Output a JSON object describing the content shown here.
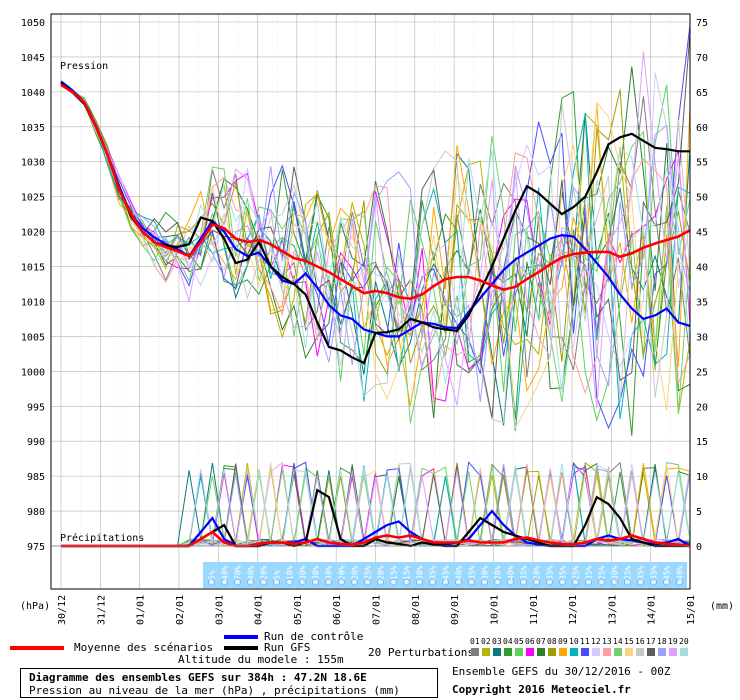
{
  "chart_data": {
    "type": "line",
    "labels": {
      "pressure": "Pression",
      "precip": "Précipitations",
      "y_unit_left": "(hPa)",
      "y_unit_right": "(mm)"
    },
    "x_dates": [
      "30/12",
      "31/12",
      "01/01",
      "02/01",
      "03/01",
      "04/01",
      "05/01",
      "06/01",
      "07/01",
      "08/01",
      "09/01",
      "10/01",
      "11/01",
      "12/01",
      "13/01",
      "14/01",
      "15/01"
    ],
    "pressure_axis": {
      "min": 975,
      "max": 1050,
      "step": 5
    },
    "precip_axis": {
      "min": 0,
      "max": 75,
      "step": 5
    },
    "snow_pct": [
      "5%",
      "40%",
      "70%",
      "40%",
      "20%",
      "5%",
      "10%",
      "30%",
      "30%",
      "30%",
      "20%",
      "20%",
      "25%",
      "20%",
      "15%",
      "15%",
      "30%",
      "35%",
      "45%",
      "40%",
      "35%",
      "30%",
      "20%",
      "40%",
      "35%",
      "20%",
      "35%",
      "35%",
      "25%",
      "35%",
      "25%",
      "30%",
      "25%",
      "35%",
      "35%",
      "45%",
      "40%"
    ],
    "series": [
      {
        "name": "Moyenne des scénarios",
        "color": "#ff0000",
        "pressure": [
          1041,
          1040,
          1038.5,
          1035,
          1031,
          1026,
          1022.5,
          1020,
          1018.5,
          1017.8,
          1017.2,
          1016.5,
          1018.5,
          1021,
          1020.5,
          1019,
          1018.5,
          1018.8,
          1018.2,
          1017.2,
          1016.2,
          1015.8,
          1015,
          1014.2,
          1013.2,
          1012.2,
          1011.2,
          1011.5,
          1011.2,
          1010.6,
          1010.4,
          1011,
          1012.2,
          1013.2,
          1013.5,
          1013.5,
          1013,
          1012.3,
          1011.7,
          1012.1,
          1013.2,
          1014.2,
          1015.3,
          1016.3,
          1016.8,
          1017,
          1017.1,
          1017.1,
          1016.4,
          1016.9,
          1017.7,
          1018.3,
          1018.8,
          1019.3,
          1020.2
        ],
        "precip": [
          0,
          0,
          0,
          0,
          0,
          0,
          0,
          0,
          0,
          0,
          0,
          0,
          1,
          2,
          0.5,
          0,
          0,
          0.3,
          0.5,
          0.5,
          0.3,
          0.5,
          1,
          0.5,
          0.3,
          0.2,
          0.5,
          1.2,
          1.5,
          1.2,
          1.5,
          1,
          0.5,
          0.5,
          0.5,
          0.8,
          0.5,
          0.5,
          0.5,
          1,
          1.2,
          0.8,
          0.5,
          0.3,
          0.2,
          0.5,
          1,
          0.8,
          1,
          1.5,
          1,
          0.5,
          0.3,
          0.2,
          0
        ]
      },
      {
        "name": "Run de contrôle",
        "color": "#0000ff",
        "pressure": [
          1041.5,
          1040.2,
          1038.5,
          1035.2,
          1031,
          1026.5,
          1022.5,
          1020.5,
          1019.2,
          1018.2,
          1017.5,
          1016.5,
          1019,
          1021.5,
          1020,
          1017.5,
          1016.5,
          1017,
          1015,
          1013,
          1012.5,
          1014,
          1012,
          1009.5,
          1008,
          1007.5,
          1006,
          1005.5,
          1005,
          1005,
          1006,
          1007,
          1006.8,
          1006.3,
          1006.2,
          1008.5,
          1010.5,
          1012.5,
          1014.5,
          1016,
          1017,
          1018,
          1019,
          1019.5,
          1019.3,
          1017.5,
          1015.5,
          1013.5,
          1011,
          1009,
          1007.5,
          1008,
          1009,
          1007,
          1006.5
        ],
        "precip": [
          0,
          0,
          0,
          0,
          0,
          0,
          0,
          0,
          0,
          0,
          0,
          0,
          2,
          4,
          1,
          0,
          0,
          0,
          0.5,
          0.5,
          0.5,
          1,
          0,
          0,
          0,
          0,
          1,
          2,
          3,
          3.5,
          2,
          1,
          0.5,
          0.2,
          0.5,
          1,
          3,
          5,
          3,
          1.5,
          0.5,
          0.2,
          0,
          0,
          0,
          0,
          1,
          1.5,
          1,
          0.8,
          0.5,
          0.2,
          0.5,
          1,
          0
        ]
      },
      {
        "name": "Run GFS",
        "color": "#000000",
        "pressure": [
          1041.3,
          1040,
          1038.3,
          1035,
          1031,
          1026.2,
          1022.2,
          1020,
          1018.5,
          1018,
          1017.8,
          1018.2,
          1022,
          1021.5,
          1019,
          1015.5,
          1016,
          1018.5,
          1015,
          1013.5,
          1012.5,
          1011,
          1007,
          1003.5,
          1003,
          1002,
          1001.2,
          1005.5,
          1005.6,
          1006,
          1007.5,
          1007,
          1006.3,
          1006,
          1005.8,
          1008,
          1011.5,
          1015,
          1019,
          1023,
          1026.5,
          1025.5,
          1024,
          1022.5,
          1023.5,
          1025,
          1028.5,
          1032.5,
          1033.5,
          1034,
          1033,
          1032,
          1031.8,
          1031.5,
          1031.5
        ],
        "precip": [
          0,
          0,
          0,
          0,
          0,
          0,
          0,
          0,
          0,
          0,
          0,
          0,
          1,
          2,
          3,
          0,
          0,
          0,
          0.5,
          0.5,
          0,
          0.5,
          8,
          7,
          1,
          0,
          0,
          1,
          0.5,
          0.3,
          0,
          0.5,
          0.2,
          0,
          0,
          2,
          4,
          3,
          2,
          1.5,
          1,
          0.5,
          0,
          0,
          0,
          3,
          7,
          6,
          4,
          1,
          0.5,
          0,
          0,
          0,
          0
        ]
      }
    ],
    "footer": {
      "legend_control": "Run de contrôle",
      "legend_gfs": "Run GFS",
      "legend_mean": "Moyenne des scénarios",
      "altitude": "Altitude du modele : 155m",
      "perturbations": "20 Perturbations",
      "title": "Diagramme des ensembles GEFS sur 384h : 47.2N 18.6E",
      "subtitle": "Pression au niveau de la mer (hPa) , précipitations (mm)",
      "run": "Ensemble GEFS du 30/12/2016 - 00Z",
      "copyright": "Copyright 2016 Meteociel.fr",
      "pert_numbers": [
        "01",
        "02",
        "03",
        "04",
        "05",
        "06",
        "07",
        "08",
        "09",
        "10",
        "11",
        "12",
        "13",
        "14",
        "15",
        "16",
        "17",
        "18",
        "19",
        "20"
      ],
      "pert_colors": [
        "#7f7f7f",
        "#b5b500",
        "#0a7a7a",
        "#2f9e2f",
        "#5ed35e",
        "#ff00ff",
        "#2d802d",
        "#9e9e00",
        "#ffa800",
        "#00b5b5",
        "#4a4aff",
        "#d3c8ff",
        "#ff9e9e",
        "#6ed36e",
        "#ffd27f",
        "#c8c8c8",
        "#5e5e5e",
        "#a0a0ff",
        "#e0a0ff",
        "#a0e0e0"
      ]
    }
  }
}
